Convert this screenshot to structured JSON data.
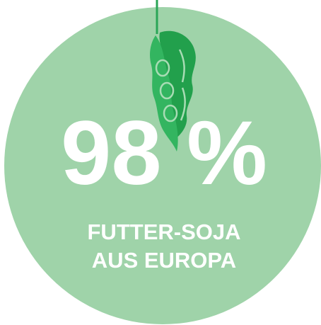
{
  "headline": "98 %",
  "caption": [
    "FUTTER-SOJA",
    "AUS EUROPA"
  ]
}
